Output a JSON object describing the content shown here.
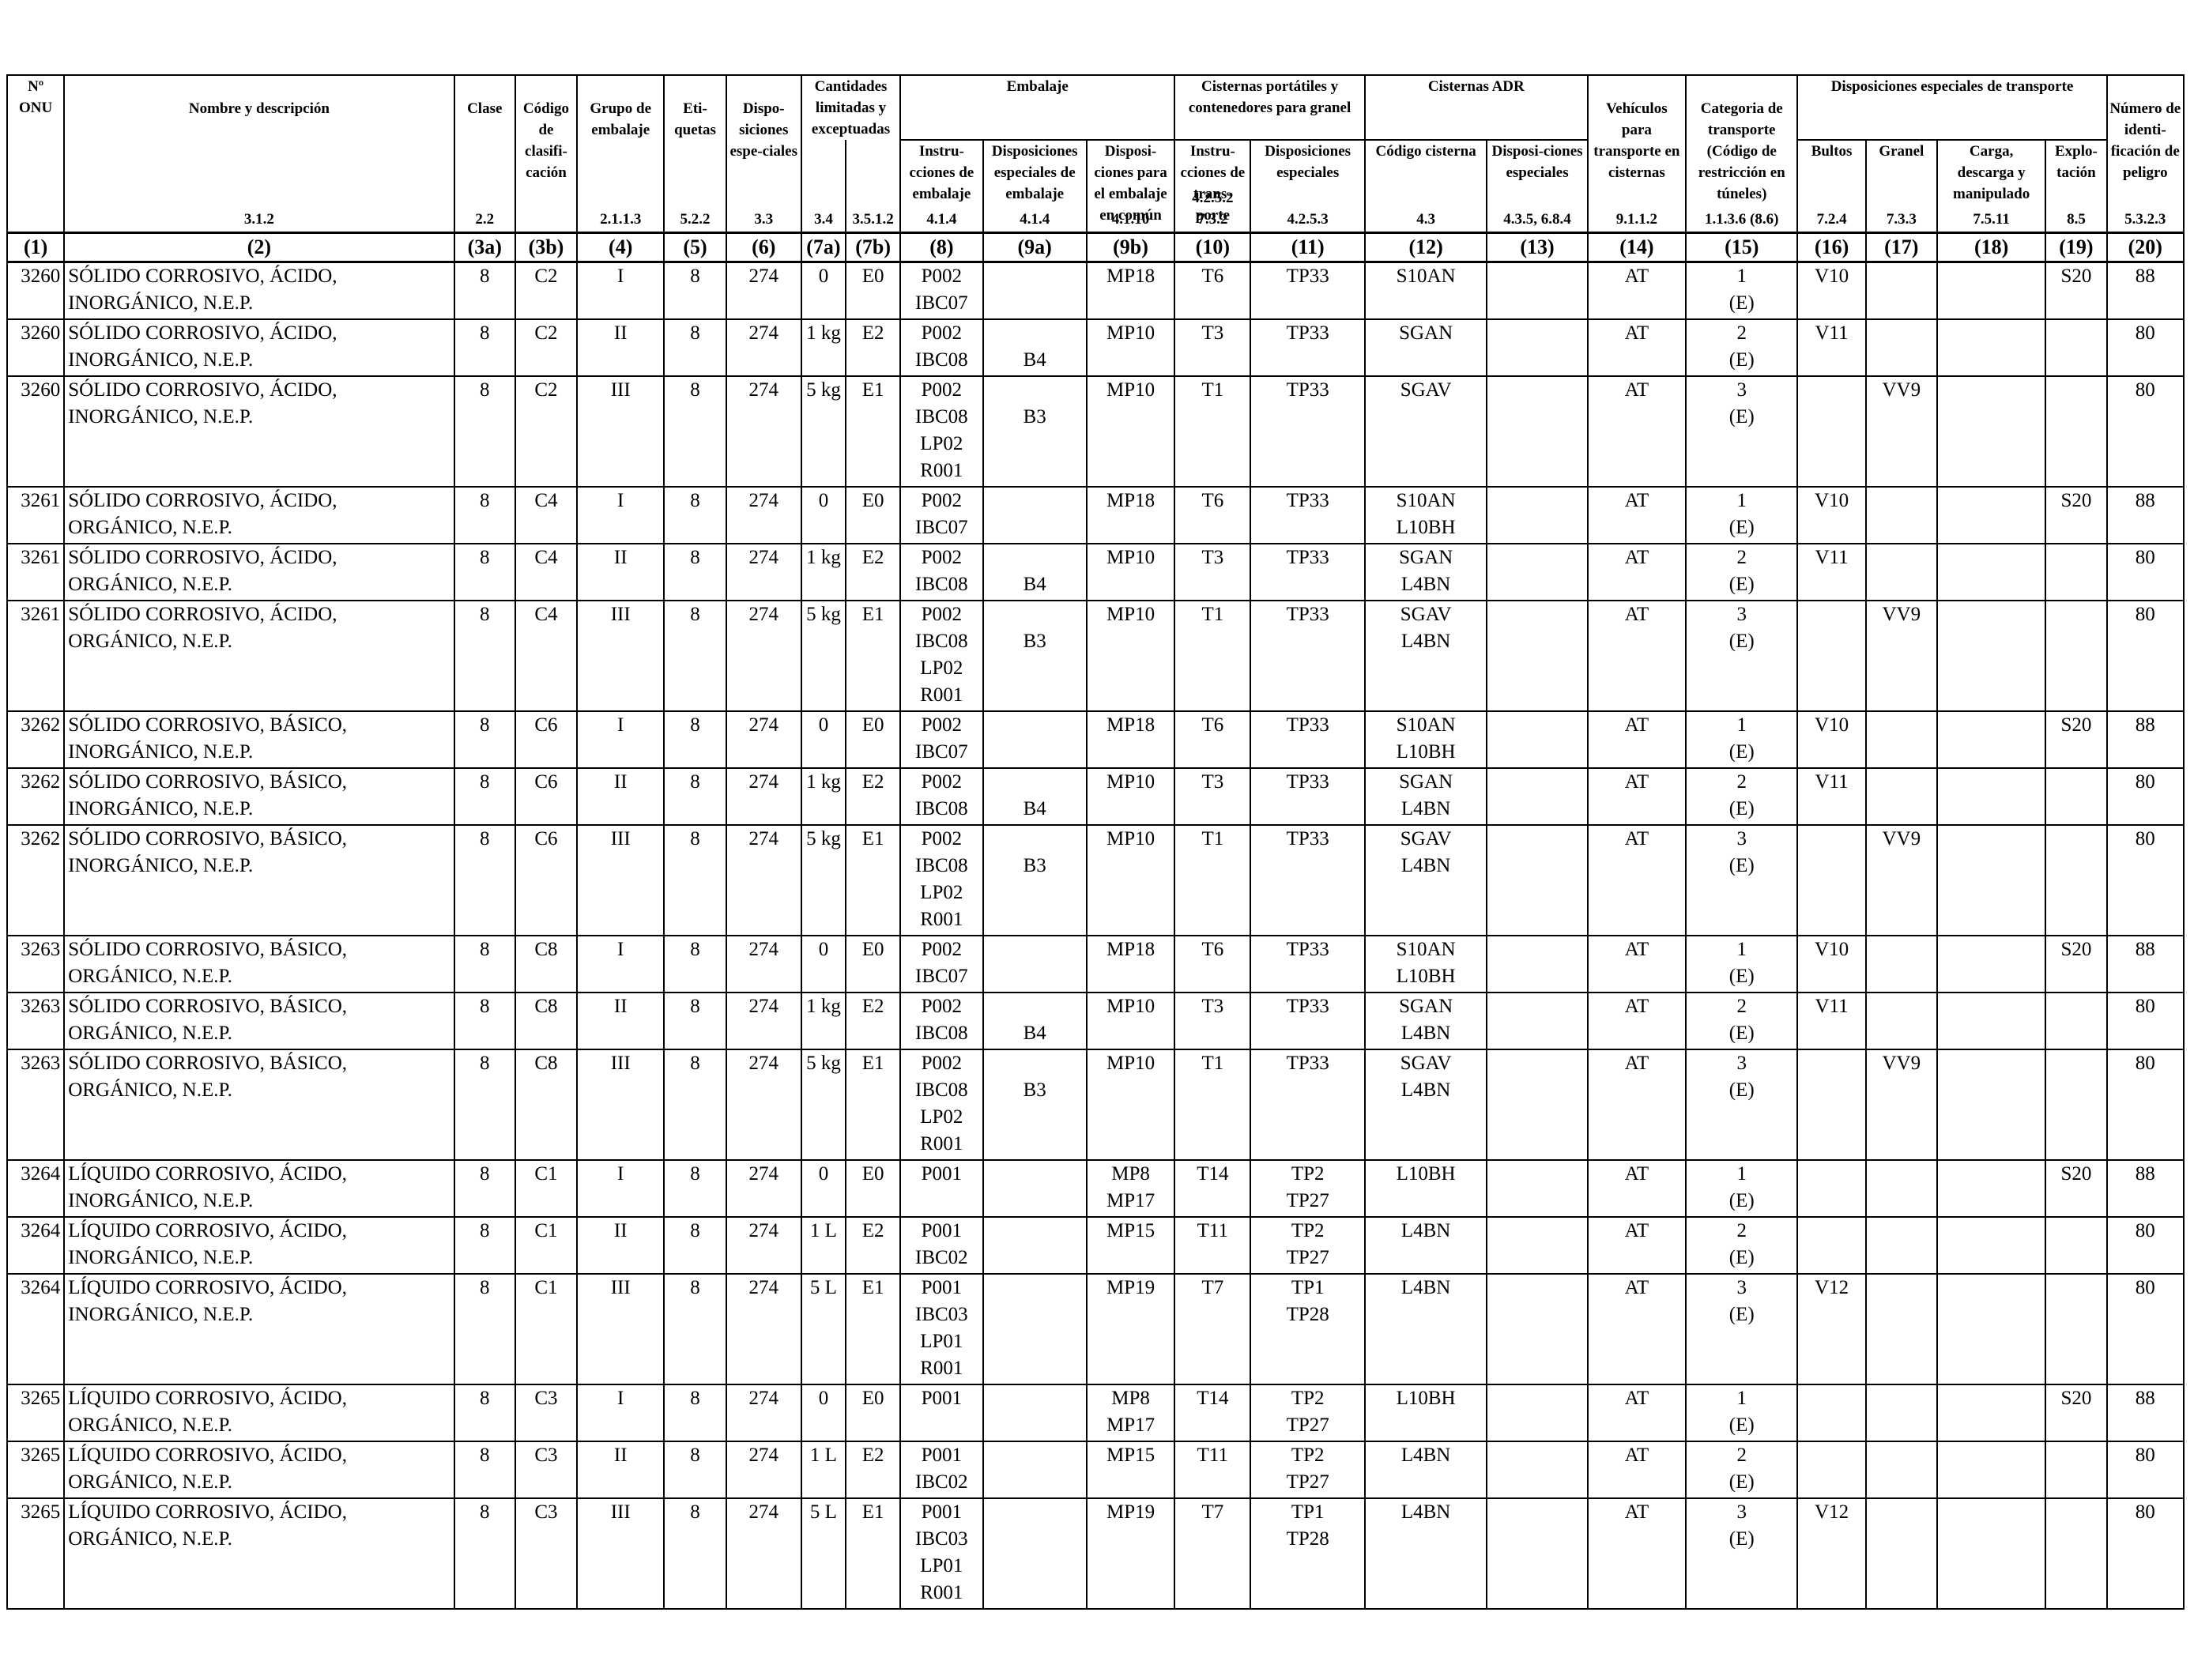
{
  "header": {
    "col1": "Nº ONU",
    "col2": "Nombre y descripción",
    "col3a": "Clase",
    "col3b": "Código de clasifi-cación",
    "col4": "Grupo de embalaje",
    "col5": "Eti-quetas",
    "col6": "Dispo-siciones espe-ciales",
    "col7": "Cantidades limitadas y exceptuadas",
    "col8_9": "Embalaje",
    "col8": "Instru-cciones de embalaje",
    "col9a": "Disposiciones especiales de embalaje",
    "col9b": "Disposi-ciones para el embalaje en común",
    "col10_11": "Cisternas portátiles y contenedores para granel",
    "col10": "Instru-cciones de trans-porte",
    "col11": "Disposiciones especiales",
    "col12_13": "Cisternas ADR",
    "col12": "Código cisterna",
    "col13": "Disposi-ciones especiales",
    "col14": "Vehículos para transporte en cisternas",
    "col15": "Categoria de transporte (Código de restricción en túneles)",
    "col16_19": "Disposiciones especiales de transporte",
    "col16": "Bultos",
    "col17": "Granel",
    "col18": "Carga, descarga y manipulado",
    "col19": "Explo-tación",
    "col20": "Número de identi-ficación de peligro"
  },
  "refs": {
    "r2": "3.1.2",
    "r3a": "2.2",
    "r4": "2.1.1.3",
    "r5": "5.2.2",
    "r6": "3.3",
    "r7a": "3.4",
    "r7b": "3.5.1.2",
    "r8": "4.1.4",
    "r9a": "4.1.4",
    "r9b": "4.1.10",
    "r10": "4.2.5.2 7.3.2",
    "r11": "4.2.5.3",
    "r12": "4.3",
    "r13": "4.3.5, 6.8.4",
    "r14": "9.1.1.2",
    "r15": "1.1.3.6 (8.6)",
    "r16": "7.2.4",
    "r17": "7.3.3",
    "r18": "7.5.11",
    "r19": "8.5",
    "r20": "5.3.2.3"
  },
  "col_numbers": [
    "(1)",
    "(2)",
    "(3a)",
    "(3b)",
    "(4)",
    "(5)",
    "(6)",
    "(7a)",
    "(7b)",
    "(8)",
    "(9a)",
    "(9b)",
    "(10)",
    "(11)",
    "(12)",
    "(13)",
    "(14)",
    "(15)",
    "(16)",
    "(17)",
    "(18)",
    "(19)",
    "(20)"
  ],
  "rows": [
    {
      "onu": "3260",
      "name": [
        "SÓLIDO CORROSIVO, ÁCIDO,",
        "INORGÁNICO, N.E.P."
      ],
      "clase": "8",
      "codigo": "C2",
      "grupo": "I",
      "etiquetas": "8",
      "disp": "274",
      "c7a": "0",
      "c7b": "E0",
      "c8": [
        "P002",
        "IBC07"
      ],
      "c9a": [],
      "c9b": [
        "MP18"
      ],
      "c10": [
        "T6"
      ],
      "c11": [
        "TP33"
      ],
      "c12": [
        "S10AN"
      ],
      "c13": "",
      "c14": "AT",
      "c15": [
        "1",
        "(E)"
      ],
      "c16": "V10",
      "c17": "",
      "c18": "",
      "c19": "S20",
      "c20": "88"
    },
    {
      "onu": "3260",
      "name": [
        "SÓLIDO CORROSIVO, ÁCIDO,",
        "INORGÁNICO, N.E.P."
      ],
      "clase": "8",
      "codigo": "C2",
      "grupo": "II",
      "etiquetas": "8",
      "disp": "274",
      "c7a": "1 kg",
      "c7b": "E2",
      "c8": [
        "P002",
        "IBC08"
      ],
      "c9a": [
        "",
        "B4"
      ],
      "c9b": [
        "MP10"
      ],
      "c10": [
        "T3"
      ],
      "c11": [
        "TP33"
      ],
      "c12": [
        "SGAN"
      ],
      "c13": "",
      "c14": "AT",
      "c15": [
        "2",
        "(E)"
      ],
      "c16": "V11",
      "c17": "",
      "c18": "",
      "c19": "",
      "c20": "80"
    },
    {
      "onu": "3260",
      "name": [
        "SÓLIDO CORROSIVO, ÁCIDO,",
        "INORGÁNICO, N.E.P."
      ],
      "clase": "8",
      "codigo": "C2",
      "grupo": "III",
      "etiquetas": "8",
      "disp": "274",
      "c7a": "5 kg",
      "c7b": "E1",
      "c8": [
        "P002",
        "IBC08",
        "LP02",
        "R001"
      ],
      "c9a": [
        "",
        "B3"
      ],
      "c9b": [
        "MP10"
      ],
      "c10": [
        "T1"
      ],
      "c11": [
        "TP33"
      ],
      "c12": [
        "SGAV"
      ],
      "c13": "",
      "c14": "AT",
      "c15": [
        "3",
        "(E)"
      ],
      "c16": "",
      "c17": "VV9",
      "c18": "",
      "c19": "",
      "c20": "80"
    },
    {
      "onu": "3261",
      "name": [
        "SÓLIDO CORROSIVO, ÁCIDO,",
        "ORGÁNICO, N.E.P."
      ],
      "clase": "8",
      "codigo": "C4",
      "grupo": "I",
      "etiquetas": "8",
      "disp": "274",
      "c7a": "0",
      "c7b": "E0",
      "c8": [
        "P002",
        "IBC07"
      ],
      "c9a": [],
      "c9b": [
        "MP18"
      ],
      "c10": [
        "T6"
      ],
      "c11": [
        "TP33"
      ],
      "c12": [
        "S10AN",
        "L10BH"
      ],
      "c13": "",
      "c14": "AT",
      "c15": [
        "1",
        "(E)"
      ],
      "c16": "V10",
      "c17": "",
      "c18": "",
      "c19": "S20",
      "c20": "88"
    },
    {
      "onu": "3261",
      "name": [
        "SÓLIDO CORROSIVO, ÁCIDO,",
        "ORGÁNICO, N.E.P."
      ],
      "clase": "8",
      "codigo": "C4",
      "grupo": "II",
      "etiquetas": "8",
      "disp": "274",
      "c7a": "1 kg",
      "c7b": "E2",
      "c8": [
        "P002",
        "IBC08"
      ],
      "c9a": [
        "",
        "B4"
      ],
      "c9b": [
        "MP10"
      ],
      "c10": [
        "T3"
      ],
      "c11": [
        "TP33"
      ],
      "c12": [
        "SGAN",
        "L4BN"
      ],
      "c13": "",
      "c14": "AT",
      "c15": [
        "2",
        "(E)"
      ],
      "c16": "V11",
      "c17": "",
      "c18": "",
      "c19": "",
      "c20": "80"
    },
    {
      "onu": "3261",
      "name": [
        "SÓLIDO CORROSIVO, ÁCIDO,",
        "ORGÁNICO, N.E.P."
      ],
      "clase": "8",
      "codigo": "C4",
      "grupo": "III",
      "etiquetas": "8",
      "disp": "274",
      "c7a": "5 kg",
      "c7b": "E1",
      "c8": [
        "P002",
        "IBC08",
        "LP02",
        "R001"
      ],
      "c9a": [
        "",
        "B3"
      ],
      "c9b": [
        "MP10"
      ],
      "c10": [
        "T1"
      ],
      "c11": [
        "TP33"
      ],
      "c12": [
        "SGAV",
        "L4BN"
      ],
      "c13": "",
      "c14": "AT",
      "c15": [
        "3",
        "(E)"
      ],
      "c16": "",
      "c17": "VV9",
      "c18": "",
      "c19": "",
      "c20": "80"
    },
    {
      "onu": "3262",
      "name": [
        "SÓLIDO CORROSIVO, BÁSICO,",
        "INORGÁNICO, N.E.P."
      ],
      "clase": "8",
      "codigo": "C6",
      "grupo": "I",
      "etiquetas": "8",
      "disp": "274",
      "c7a": "0",
      "c7b": "E0",
      "c8": [
        "P002",
        "IBC07"
      ],
      "c9a": [],
      "c9b": [
        "MP18"
      ],
      "c10": [
        "T6"
      ],
      "c11": [
        "TP33"
      ],
      "c12": [
        "S10AN",
        "L10BH"
      ],
      "c13": "",
      "c14": "AT",
      "c15": [
        "1",
        "(E)"
      ],
      "c16": "V10",
      "c17": "",
      "c18": "",
      "c19": "S20",
      "c20": "88"
    },
    {
      "onu": "3262",
      "name": [
        "SÓLIDO CORROSIVO, BÁSICO,",
        "INORGÁNICO, N.E.P."
      ],
      "clase": "8",
      "codigo": "C6",
      "grupo": "II",
      "etiquetas": "8",
      "disp": "274",
      "c7a": "1 kg",
      "c7b": "E2",
      "c8": [
        "P002",
        "IBC08"
      ],
      "c9a": [
        "",
        "B4"
      ],
      "c9b": [
        "MP10"
      ],
      "c10": [
        "T3"
      ],
      "c11": [
        "TP33"
      ],
      "c12": [
        "SGAN",
        "L4BN"
      ],
      "c13": "",
      "c14": "AT",
      "c15": [
        "2",
        "(E)"
      ],
      "c16": "V11",
      "c17": "",
      "c18": "",
      "c19": "",
      "c20": "80"
    },
    {
      "onu": "3262",
      "name": [
        "SÓLIDO CORROSIVO, BÁSICO,",
        "INORGÁNICO, N.E.P."
      ],
      "clase": "8",
      "codigo": "C6",
      "grupo": "III",
      "etiquetas": "8",
      "disp": "274",
      "c7a": "5 kg",
      "c7b": "E1",
      "c8": [
        "P002",
        "IBC08",
        "LP02",
        "R001"
      ],
      "c9a": [
        "",
        "B3"
      ],
      "c9b": [
        "MP10"
      ],
      "c10": [
        "T1"
      ],
      "c11": [
        "TP33"
      ],
      "c12": [
        "SGAV",
        "L4BN"
      ],
      "c13": "",
      "c14": "AT",
      "c15": [
        "3",
        "(E)"
      ],
      "c16": "",
      "c17": "VV9",
      "c18": "",
      "c19": "",
      "c20": "80"
    },
    {
      "onu": "3263",
      "name": [
        "SÓLIDO CORROSIVO, BÁSICO,",
        "ORGÁNICO, N.E.P."
      ],
      "clase": "8",
      "codigo": "C8",
      "grupo": "I",
      "etiquetas": "8",
      "disp": "274",
      "c7a": "0",
      "c7b": "E0",
      "c8": [
        "P002",
        "IBC07"
      ],
      "c9a": [],
      "c9b": [
        "MP18"
      ],
      "c10": [
        "T6"
      ],
      "c11": [
        "TP33"
      ],
      "c12": [
        "S10AN",
        "L10BH"
      ],
      "c13": "",
      "c14": "AT",
      "c15": [
        "1",
        "(E)"
      ],
      "c16": "V10",
      "c17": "",
      "c18": "",
      "c19": "S20",
      "c20": "88"
    },
    {
      "onu": "3263",
      "name": [
        "SÓLIDO CORROSIVO, BÁSICO,",
        "ORGÁNICO, N.E.P."
      ],
      "clase": "8",
      "codigo": "C8",
      "grupo": "II",
      "etiquetas": "8",
      "disp": "274",
      "c7a": "1 kg",
      "c7b": "E2",
      "c8": [
        "P002",
        "IBC08"
      ],
      "c9a": [
        "",
        "B4"
      ],
      "c9b": [
        "MP10"
      ],
      "c10": [
        "T3"
      ],
      "c11": [
        "TP33"
      ],
      "c12": [
        "SGAN",
        "L4BN"
      ],
      "c13": "",
      "c14": "AT",
      "c15": [
        "2",
        "(E)"
      ],
      "c16": "V11",
      "c17": "",
      "c18": "",
      "c19": "",
      "c20": "80"
    },
    {
      "onu": "3263",
      "name": [
        "SÓLIDO CORROSIVO, BÁSICO,",
        "ORGÁNICO, N.E.P."
      ],
      "clase": "8",
      "codigo": "C8",
      "grupo": "III",
      "etiquetas": "8",
      "disp": "274",
      "c7a": "5 kg",
      "c7b": "E1",
      "c8": [
        "P002",
        "IBC08",
        "LP02",
        "R001"
      ],
      "c9a": [
        "",
        "B3"
      ],
      "c9b": [
        "MP10"
      ],
      "c10": [
        "T1"
      ],
      "c11": [
        "TP33"
      ],
      "c12": [
        "SGAV",
        "L4BN"
      ],
      "c13": "",
      "c14": "AT",
      "c15": [
        "3",
        "(E)"
      ],
      "c16": "",
      "c17": "VV9",
      "c18": "",
      "c19": "",
      "c20": "80"
    },
    {
      "onu": "3264",
      "name": [
        "LÍQUIDO CORROSIVO, ÁCIDO,",
        "INORGÁNICO, N.E.P."
      ],
      "clase": "8",
      "codigo": "C1",
      "grupo": "I",
      "etiquetas": "8",
      "disp": "274",
      "c7a": "0",
      "c7b": "E0",
      "c8": [
        "P001"
      ],
      "c9a": [],
      "c9b": [
        "MP8",
        "MP17"
      ],
      "c10": [
        "T14"
      ],
      "c11": [
        "TP2",
        "TP27"
      ],
      "c12": [
        "L10BH"
      ],
      "c13": "",
      "c14": "AT",
      "c15": [
        "1",
        "(E)"
      ],
      "c16": "",
      "c17": "",
      "c18": "",
      "c19": "S20",
      "c20": "88"
    },
    {
      "onu": "3264",
      "name": [
        "LÍQUIDO CORROSIVO, ÁCIDO,",
        "INORGÁNICO, N.E.P."
      ],
      "clase": "8",
      "codigo": "C1",
      "grupo": "II",
      "etiquetas": "8",
      "disp": "274",
      "c7a": "1 L",
      "c7b": "E2",
      "c8": [
        "P001",
        "IBC02"
      ],
      "c9a": [],
      "c9b": [
        "MP15"
      ],
      "c10": [
        "T11"
      ],
      "c11": [
        "TP2",
        "TP27"
      ],
      "c12": [
        "L4BN"
      ],
      "c13": "",
      "c14": "AT",
      "c15": [
        "2",
        "(E)"
      ],
      "c16": "",
      "c17": "",
      "c18": "",
      "c19": "",
      "c20": "80"
    },
    {
      "onu": "3264",
      "name": [
        "LÍQUIDO CORROSIVO, ÁCIDO,",
        "INORGÁNICO, N.E.P."
      ],
      "clase": "8",
      "codigo": "C1",
      "grupo": "III",
      "etiquetas": "8",
      "disp": "274",
      "c7a": "5 L",
      "c7b": "E1",
      "c8": [
        "P001",
        "IBC03",
        "LP01",
        "R001"
      ],
      "c9a": [],
      "c9b": [
        "MP19"
      ],
      "c10": [
        "T7"
      ],
      "c11": [
        "TP1",
        "TP28"
      ],
      "c12": [
        "L4BN"
      ],
      "c13": "",
      "c14": "AT",
      "c15": [
        "3",
        "(E)"
      ],
      "c16": "V12",
      "c17": "",
      "c18": "",
      "c19": "",
      "c20": "80"
    },
    {
      "onu": "3265",
      "name": [
        "LÍQUIDO CORROSIVO, ÁCIDO,",
        "ORGÁNICO, N.E.P."
      ],
      "clase": "8",
      "codigo": "C3",
      "grupo": "I",
      "etiquetas": "8",
      "disp": "274",
      "c7a": "0",
      "c7b": "E0",
      "c8": [
        "P001"
      ],
      "c9a": [],
      "c9b": [
        "MP8",
        "MP17"
      ],
      "c10": [
        "T14"
      ],
      "c11": [
        "TP2",
        "TP27"
      ],
      "c12": [
        "L10BH"
      ],
      "c13": "",
      "c14": "AT",
      "c15": [
        "1",
        "(E)"
      ],
      "c16": "",
      "c17": "",
      "c18": "",
      "c19": "S20",
      "c20": "88"
    },
    {
      "onu": "3265",
      "name": [
        "LÍQUIDO CORROSIVO, ÁCIDO,",
        "ORGÁNICO, N.E.P."
      ],
      "clase": "8",
      "codigo": "C3",
      "grupo": "II",
      "etiquetas": "8",
      "disp": "274",
      "c7a": "1 L",
      "c7b": "E2",
      "c8": [
        "P001",
        "IBC02"
      ],
      "c9a": [],
      "c9b": [
        "MP15"
      ],
      "c10": [
        "T11"
      ],
      "c11": [
        "TP2",
        "TP27"
      ],
      "c12": [
        "L4BN"
      ],
      "c13": "",
      "c14": "AT",
      "c15": [
        "2",
        "(E)"
      ],
      "c16": "",
      "c17": "",
      "c18": "",
      "c19": "",
      "c20": "80"
    },
    {
      "onu": "3265",
      "name": [
        "LÍQUIDO CORROSIVO, ÁCIDO,",
        "ORGÁNICO, N.E.P."
      ],
      "clase": "8",
      "codigo": "C3",
      "grupo": "III",
      "etiquetas": "8",
      "disp": "274",
      "c7a": "5 L",
      "c7b": "E1",
      "c8": [
        "P001",
        "IBC03",
        "LP01",
        "R001"
      ],
      "c9a": [],
      "c9b": [
        "MP19"
      ],
      "c10": [
        "T7"
      ],
      "c11": [
        "TP1",
        "TP28"
      ],
      "c12": [
        "L4BN"
      ],
      "c13": "",
      "c14": "AT",
      "c15": [
        "3",
        "(E)"
      ],
      "c16": "V12",
      "c17": "",
      "c18": "",
      "c19": "",
      "c20": "80"
    }
  ]
}
